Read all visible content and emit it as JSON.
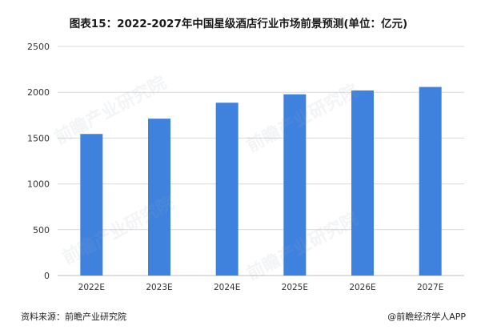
{
  "chart_data": {
    "type": "bar",
    "title": "图表15：2022-2027年中国星级酒店行业市场前景预测(单位：亿元)",
    "xlabel": "",
    "ylabel": "",
    "categories": [
      "2022E",
      "2023E",
      "2024E",
      "2025E",
      "2026E",
      "2027E"
    ],
    "values": [
      1545,
      1712,
      1886,
      1978,
      2020,
      2058
    ],
    "ylim": [
      0,
      2500
    ],
    "yticks": [
      0,
      500,
      1000,
      1500,
      2000,
      2500
    ],
    "grid": true,
    "bar_color": "#3f82de",
    "grid_color": "#d9d9d9",
    "axis_color": "#bfbfbf"
  },
  "footer": {
    "source": "资料来源：前瞻产业研究院",
    "brand": "@前瞻经济学人APP"
  },
  "watermark": {
    "text": "前瞻产业研究院"
  }
}
